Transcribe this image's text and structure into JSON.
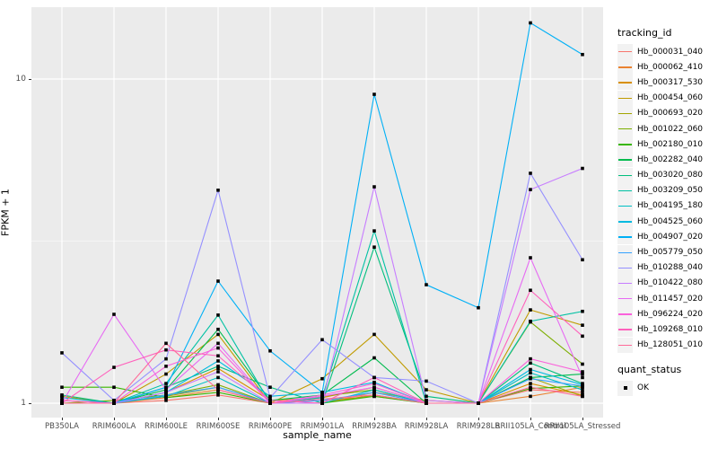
{
  "chart_data": {
    "type": "line",
    "title": "",
    "xlabel": "sample_name",
    "ylabel": "FPKM + 1",
    "y_scale": "log10",
    "ylim": [
      0.9,
      16.6
    ],
    "yticks": [
      1,
      10
    ],
    "minor_gridlines": [
      3.1623
    ],
    "grid": true,
    "panel_background": "#EBEBEB",
    "gridline_color": "#FFFFFF",
    "marker": "black-square",
    "legend_position": "right",
    "legend_title": "tracking_id",
    "categories": [
      "PB350LA",
      "RRIM600LA",
      "RRIM600LE",
      "RRIM600SE",
      "RRIM600PE",
      "RRIM901LA",
      "RRIM928BA",
      "RRIM928LA",
      "RRIM928LB",
      "RRII105LA_Control",
      "RRII105LA_Stressed"
    ],
    "series": [
      {
        "name": "Hb_000031_040",
        "color": "#F8766D",
        "values": [
          1.0,
          1.0,
          1.02,
          1.06,
          1.0,
          1.02,
          1.05,
          1.0,
          1.0,
          1.1,
          1.08
        ]
      },
      {
        "name": "Hb_000062_410",
        "color": "#EA8331",
        "values": [
          1.0,
          1.0,
          1.04,
          1.1,
          1.0,
          1.0,
          1.08,
          1.02,
          1.0,
          1.05,
          1.12
        ]
      },
      {
        "name": "Hb_000317_530",
        "color": "#D89000",
        "values": [
          1.02,
          1.0,
          1.08,
          1.28,
          1.02,
          1.04,
          1.12,
          1.0,
          1.0,
          1.15,
          1.06
        ]
      },
      {
        "name": "Hb_000454_060",
        "color": "#C09B00",
        "values": [
          1.05,
          1.0,
          1.23,
          1.63,
          1.0,
          1.19,
          1.63,
          1.1,
          1.0,
          1.94,
          1.74
        ]
      },
      {
        "name": "Hb_000693_020",
        "color": "#A3A500",
        "values": [
          1.0,
          1.0,
          1.05,
          1.12,
          1.0,
          1.0,
          1.06,
          1.0,
          1.0,
          1.2,
          1.05
        ]
      },
      {
        "name": "Hb_001022_060",
        "color": "#7CAE00",
        "values": [
          1.0,
          1.02,
          1.06,
          1.14,
          1.0,
          1.05,
          1.1,
          1.0,
          1.0,
          1.78,
          1.32
        ]
      },
      {
        "name": "Hb_002180_010",
        "color": "#39B600",
        "values": [
          1.12,
          1.12,
          1.04,
          1.08,
          1.0,
          1.0,
          1.05,
          1.0,
          1.0,
          1.11,
          1.13
        ]
      },
      {
        "name": "Hb_002282_040",
        "color": "#00BB4E",
        "values": [
          1.0,
          1.0,
          1.1,
          1.69,
          1.02,
          1.06,
          1.38,
          1.0,
          1.0,
          1.2,
          1.23
        ]
      },
      {
        "name": "Hb_003020_080",
        "color": "#00BF7D",
        "values": [
          1.06,
          1.0,
          1.12,
          1.3,
          1.12,
          1.0,
          3.03,
          1.05,
          1.0,
          1.33,
          1.15
        ]
      },
      {
        "name": "Hb_003209_050",
        "color": "#00C1A3",
        "values": [
          1.0,
          1.0,
          1.15,
          1.87,
          1.0,
          1.04,
          3.4,
          1.0,
          1.0,
          1.79,
          1.92
        ]
      },
      {
        "name": "Hb_004195_180",
        "color": "#00BFC4",
        "values": [
          1.0,
          1.0,
          1.05,
          1.2,
          1.0,
          1.0,
          1.1,
          1.0,
          1.0,
          1.24,
          1.1
        ]
      },
      {
        "name": "Hb_004525_060",
        "color": "#00BAE0",
        "values": [
          1.04,
          1.0,
          1.08,
          1.35,
          1.05,
          1.08,
          1.16,
          1.0,
          1.0,
          1.27,
          1.14
        ]
      },
      {
        "name": "Hb_004907_020",
        "color": "#00B0F6",
        "values": [
          1.0,
          1.0,
          1.12,
          2.38,
          1.45,
          1.08,
          8.97,
          2.32,
          1.97,
          14.9,
          11.9
        ]
      },
      {
        "name": "Hb_005779_050",
        "color": "#35A2FF",
        "values": [
          1.0,
          1.0,
          1.06,
          1.12,
          1.0,
          1.02,
          1.08,
          1.0,
          1.0,
          1.19,
          1.13
        ]
      },
      {
        "name": "Hb_010288_040",
        "color": "#9590FF",
        "values": [
          1.43,
          1.02,
          1.37,
          4.54,
          1.04,
          1.57,
          1.2,
          1.17,
          1.0,
          5.12,
          2.77
        ]
      },
      {
        "name": "Hb_010422_080",
        "color": "#C77CFF",
        "values": [
          1.0,
          1.0,
          1.08,
          1.25,
          1.0,
          1.0,
          4.65,
          1.02,
          1.0,
          4.56,
          5.3
        ]
      },
      {
        "name": "Hb_011457_020",
        "color": "#E76BF3",
        "values": [
          1.0,
          1.88,
          1.1,
          1.53,
          1.0,
          1.05,
          1.12,
          1.0,
          1.0,
          2.81,
          1.2
        ]
      },
      {
        "name": "Hb_096224_020",
        "color": "#FA62DB",
        "values": [
          1.02,
          1.0,
          1.3,
          1.48,
          1.0,
          1.06,
          1.15,
          1.0,
          1.0,
          1.37,
          1.25
        ]
      },
      {
        "name": "Hb_109268_010",
        "color": "#FF62BC",
        "values": [
          1.0,
          1.29,
          1.46,
          1.4,
          1.02,
          1.0,
          1.2,
          1.0,
          1.0,
          2.23,
          1.61
        ]
      },
      {
        "name": "Hb_128051_010",
        "color": "#FF6A98",
        "values": [
          1.0,
          1.0,
          1.53,
          1.1,
          1.0,
          1.03,
          1.06,
          1.0,
          1.0,
          1.12,
          1.05
        ]
      }
    ],
    "quant_status": {
      "title": "quant_status",
      "items": [
        "OK"
      ]
    }
  }
}
